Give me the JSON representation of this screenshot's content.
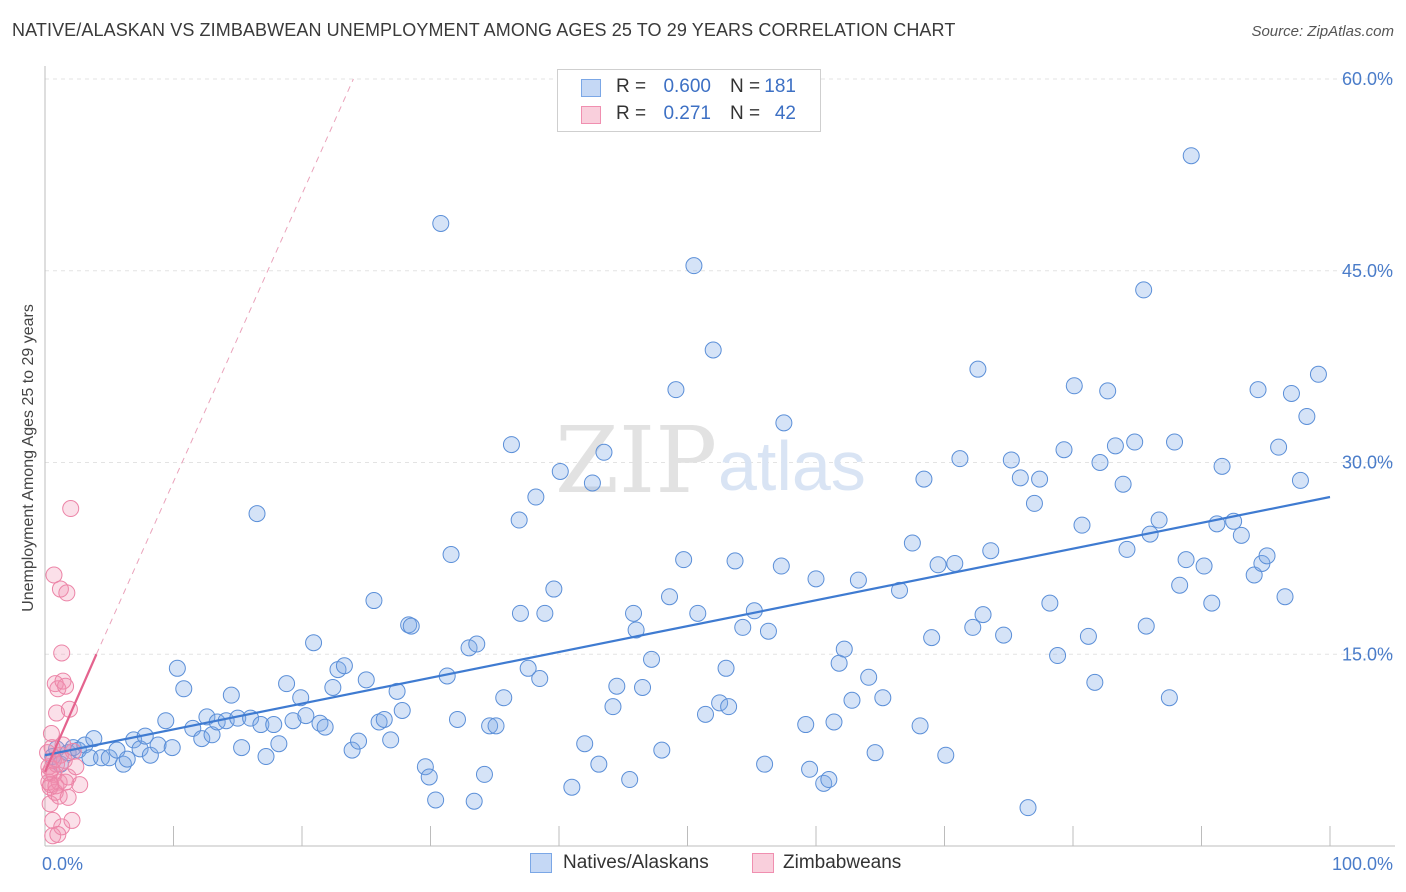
{
  "header": {
    "title": "NATIVE/ALASKAN VS ZIMBABWEAN UNEMPLOYMENT AMONG AGES 25 TO 29 YEARS CORRELATION CHART",
    "source": "Source: ZipAtlas.com"
  },
  "legend": {
    "r_label": "R =",
    "n_label": "N =",
    "series": [
      {
        "name": "Natives/Alaskans",
        "r": "0.600",
        "n": "181",
        "color": "#7ba7e6"
      },
      {
        "name": "Zimbabweans",
        "r": "0.271",
        "n": "42",
        "color": "#f08fb0"
      }
    ]
  },
  "watermark": {
    "zip": "ZIP",
    "atlas": "atlas"
  },
  "chart_data": {
    "type": "scatter",
    "title": "NATIVE/ALASKAN VS ZIMBABWEAN UNEMPLOYMENT AMONG AGES 25 TO 29 YEARS CORRELATION CHART",
    "xlabel": "",
    "ylabel": "Unemployment Among Ages 25 to 29 years",
    "xlim": [
      0,
      100
    ],
    "ylim": [
      0,
      60
    ],
    "x_tick_labels": [
      "0.0%",
      "100.0%"
    ],
    "y_tick_labels": [
      "15.0%",
      "30.0%",
      "45.0%",
      "60.0%"
    ],
    "y_ticks": [
      15,
      30,
      45,
      60
    ],
    "x_minor_ticks": [
      10,
      20,
      30,
      40,
      50,
      60,
      70,
      80,
      90,
      100
    ],
    "grid": true,
    "series": [
      {
        "name": "Natives/Alaskans",
        "color": "#7ba7e6",
        "trend": {
          "x": [
            0,
            100
          ],
          "y": [
            7.1,
            27.3
          ],
          "style": "solid"
        },
        "points": [
          [
            0.6,
            7.0
          ],
          [
            0.9,
            7.6
          ],
          [
            1.2,
            6.4
          ],
          [
            1.8,
            7.3
          ],
          [
            2.2,
            7.7
          ],
          [
            2.6,
            7.5
          ],
          [
            3.1,
            7.9
          ],
          [
            3.5,
            6.9
          ],
          [
            3.8,
            8.4
          ],
          [
            4.4,
            6.9
          ],
          [
            5.0,
            6.9
          ],
          [
            5.6,
            7.5
          ],
          [
            6.1,
            6.4
          ],
          [
            6.4,
            6.8
          ],
          [
            6.9,
            8.3
          ],
          [
            7.4,
            7.6
          ],
          [
            7.8,
            8.6
          ],
          [
            8.2,
            7.1
          ],
          [
            8.8,
            7.9
          ],
          [
            9.4,
            9.8
          ],
          [
            9.9,
            7.7
          ],
          [
            10.3,
            13.9
          ],
          [
            10.8,
            12.3
          ],
          [
            11.5,
            9.2
          ],
          [
            12.2,
            8.4
          ],
          [
            12.6,
            10.1
          ],
          [
            13.0,
            8.7
          ],
          [
            13.4,
            9.7
          ],
          [
            14.1,
            9.8
          ],
          [
            14.5,
            11.8
          ],
          [
            15.0,
            10.0
          ],
          [
            15.3,
            7.7
          ],
          [
            16.0,
            10.0
          ],
          [
            16.5,
            26.0
          ],
          [
            16.8,
            9.5
          ],
          [
            17.2,
            7.0
          ],
          [
            17.8,
            9.5
          ],
          [
            18.2,
            8.0
          ],
          [
            18.8,
            12.7
          ],
          [
            19.3,
            9.8
          ],
          [
            19.9,
            11.6
          ],
          [
            20.3,
            10.2
          ],
          [
            20.9,
            15.9
          ],
          [
            21.4,
            9.6
          ],
          [
            21.8,
            9.3
          ],
          [
            22.4,
            12.4
          ],
          [
            22.8,
            13.8
          ],
          [
            23.3,
            14.1
          ],
          [
            23.9,
            7.5
          ],
          [
            24.4,
            8.2
          ],
          [
            25.0,
            13.0
          ],
          [
            25.6,
            19.2
          ],
          [
            26.0,
            9.7
          ],
          [
            26.4,
            9.9
          ],
          [
            26.9,
            8.3
          ],
          [
            27.4,
            12.1
          ],
          [
            27.8,
            10.6
          ],
          [
            28.3,
            17.3
          ],
          [
            28.5,
            17.2
          ],
          [
            29.6,
            6.2
          ],
          [
            29.9,
            5.4
          ],
          [
            30.4,
            3.6
          ],
          [
            30.8,
            48.7
          ],
          [
            31.3,
            13.3
          ],
          [
            31.6,
            22.8
          ],
          [
            32.1,
            9.9
          ],
          [
            33.0,
            15.5
          ],
          [
            33.4,
            3.5
          ],
          [
            33.6,
            15.8
          ],
          [
            34.2,
            5.6
          ],
          [
            34.6,
            9.4
          ],
          [
            35.1,
            9.4
          ],
          [
            35.7,
            11.6
          ],
          [
            36.3,
            31.4
          ],
          [
            36.9,
            25.5
          ],
          [
            37.0,
            18.2
          ],
          [
            37.6,
            13.9
          ],
          [
            38.2,
            27.3
          ],
          [
            38.5,
            13.1
          ],
          [
            38.9,
            18.2
          ],
          [
            39.6,
            20.1
          ],
          [
            40.1,
            29.3
          ],
          [
            41.0,
            4.6
          ],
          [
            42.0,
            8.0
          ],
          [
            42.6,
            28.4
          ],
          [
            43.1,
            6.4
          ],
          [
            43.5,
            30.8
          ],
          [
            44.2,
            10.9
          ],
          [
            44.5,
            12.5
          ],
          [
            45.5,
            5.2
          ],
          [
            45.8,
            18.2
          ],
          [
            46.0,
            16.9
          ],
          [
            46.5,
            12.4
          ],
          [
            47.2,
            14.6
          ],
          [
            48.0,
            7.5
          ],
          [
            48.6,
            19.5
          ],
          [
            49.1,
            35.7
          ],
          [
            49.7,
            22.4
          ],
          [
            50.5,
            45.4
          ],
          [
            50.8,
            18.2
          ],
          [
            51.4,
            10.3
          ],
          [
            52.0,
            38.8
          ],
          [
            52.5,
            11.2
          ],
          [
            53.0,
            13.9
          ],
          [
            53.2,
            10.9
          ],
          [
            53.7,
            22.3
          ],
          [
            54.3,
            17.1
          ],
          [
            55.2,
            18.4
          ],
          [
            56.0,
            6.4
          ],
          [
            56.3,
            16.8
          ],
          [
            57.3,
            21.9
          ],
          [
            57.5,
            33.1
          ],
          [
            59.2,
            9.5
          ],
          [
            59.5,
            6.0
          ],
          [
            60.0,
            20.9
          ],
          [
            60.6,
            4.9
          ],
          [
            61.0,
            5.2
          ],
          [
            61.4,
            9.7
          ],
          [
            61.8,
            14.3
          ],
          [
            62.2,
            15.4
          ],
          [
            62.8,
            11.4
          ],
          [
            63.3,
            20.8
          ],
          [
            64.1,
            13.2
          ],
          [
            64.6,
            7.3
          ],
          [
            65.2,
            11.6
          ],
          [
            66.5,
            20.0
          ],
          [
            67.5,
            23.7
          ],
          [
            68.1,
            9.4
          ],
          [
            68.4,
            28.7
          ],
          [
            69.0,
            16.3
          ],
          [
            69.5,
            22.0
          ],
          [
            70.1,
            7.1
          ],
          [
            70.8,
            22.1
          ],
          [
            71.2,
            30.3
          ],
          [
            72.2,
            17.1
          ],
          [
            72.6,
            37.3
          ],
          [
            73.0,
            18.1
          ],
          [
            73.6,
            23.1
          ],
          [
            74.6,
            16.5
          ],
          [
            75.2,
            30.2
          ],
          [
            75.9,
            28.8
          ],
          [
            76.5,
            3.0
          ],
          [
            77.0,
            26.8
          ],
          [
            77.4,
            28.7
          ],
          [
            78.2,
            19.0
          ],
          [
            78.8,
            14.9
          ],
          [
            79.3,
            31.0
          ],
          [
            80.1,
            36.0
          ],
          [
            80.7,
            25.1
          ],
          [
            81.2,
            16.4
          ],
          [
            81.7,
            12.8
          ],
          [
            82.1,
            30.0
          ],
          [
            82.7,
            35.6
          ],
          [
            83.3,
            31.3
          ],
          [
            83.9,
            28.3
          ],
          [
            84.2,
            23.2
          ],
          [
            84.8,
            31.6
          ],
          [
            85.5,
            43.5
          ],
          [
            85.7,
            17.2
          ],
          [
            86.0,
            24.4
          ],
          [
            86.7,
            25.5
          ],
          [
            87.5,
            11.6
          ],
          [
            87.9,
            31.6
          ],
          [
            88.3,
            20.4
          ],
          [
            88.8,
            22.4
          ],
          [
            89.2,
            54.0
          ],
          [
            90.2,
            21.9
          ],
          [
            90.8,
            19.0
          ],
          [
            91.2,
            25.2
          ],
          [
            91.6,
            29.7
          ],
          [
            92.5,
            25.4
          ],
          [
            93.1,
            24.3
          ],
          [
            94.1,
            21.2
          ],
          [
            94.4,
            35.7
          ],
          [
            94.7,
            22.1
          ],
          [
            95.1,
            22.7
          ],
          [
            96.0,
            31.2
          ],
          [
            96.5,
            19.5
          ],
          [
            97.0,
            35.4
          ],
          [
            97.7,
            28.6
          ],
          [
            98.2,
            33.6
          ],
          [
            99.1,
            36.9
          ]
        ]
      },
      {
        "name": "Zimbabweans",
        "color": "#f08fb0",
        "trend": {
          "x": [
            0,
            4.0
          ],
          "y": [
            5.8,
            15.0
          ],
          "style": "solid",
          "extended_dashed": {
            "x": [
              4.0,
              24.0
            ],
            "y": [
              15.0,
              60.0
            ]
          }
        },
        "points": [
          [
            0.2,
            7.3
          ],
          [
            0.3,
            6.2
          ],
          [
            0.3,
            5.0
          ],
          [
            0.4,
            4.6
          ],
          [
            0.4,
            3.3
          ],
          [
            0.5,
            8.8
          ],
          [
            0.5,
            6.0
          ],
          [
            0.6,
            2.0
          ],
          [
            0.6,
            0.8
          ],
          [
            0.7,
            21.2
          ],
          [
            0.7,
            5.6
          ],
          [
            0.8,
            4.2
          ],
          [
            0.8,
            12.7
          ],
          [
            0.9,
            10.4
          ],
          [
            0.9,
            6.4
          ],
          [
            1.0,
            12.3
          ],
          [
            1.1,
            5.0
          ],
          [
            1.1,
            3.9
          ],
          [
            1.2,
            20.1
          ],
          [
            1.2,
            7.1
          ],
          [
            1.3,
            15.1
          ],
          [
            1.3,
            1.5
          ],
          [
            1.4,
            12.9
          ],
          [
            1.5,
            6.7
          ],
          [
            1.6,
            12.5
          ],
          [
            1.7,
            19.8
          ],
          [
            1.8,
            5.4
          ],
          [
            1.8,
            3.8
          ],
          [
            1.9,
            10.7
          ],
          [
            2.0,
            26.4
          ],
          [
            2.1,
            2.0
          ],
          [
            2.2,
            7.4
          ],
          [
            2.4,
            6.2
          ],
          [
            2.7,
            4.8
          ],
          [
            0.35,
            5.7
          ],
          [
            0.45,
            4.8
          ],
          [
            0.55,
            7.7
          ],
          [
            0.65,
            6.7
          ],
          [
            0.85,
            4.7
          ],
          [
            1.0,
            0.9
          ],
          [
            1.4,
            7.9
          ],
          [
            1.6,
            5.0
          ]
        ]
      }
    ]
  }
}
